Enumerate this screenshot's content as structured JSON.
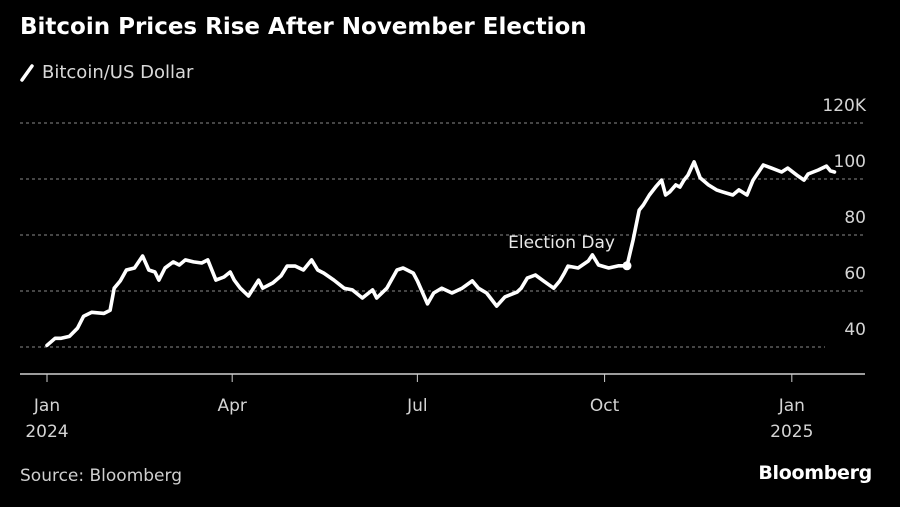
{
  "source_text": "Source: Bloomberg",
  "brand": "Bloomberg",
  "chart_data": {
    "type": "line",
    "title": "Bitcoin Prices Rise After November Election",
    "legend": [
      {
        "name": "Bitcoin/US Dollar",
        "color": "#ffffff"
      }
    ],
    "legend_placement": "top-left",
    "xlabel": "",
    "ylabel": "",
    "ylim": [
      32,
      125
    ],
    "yticks": [
      {
        "value": 120,
        "label": "120K"
      },
      {
        "value": 100,
        "label": "100"
      },
      {
        "value": 80,
        "label": "80"
      },
      {
        "value": 60,
        "label": "60"
      },
      {
        "value": 40,
        "label": "40"
      }
    ],
    "xticks": [
      {
        "day": 0,
        "label": "Jan",
        "sublabel": "2024"
      },
      {
        "day": 91,
        "label": "Apr",
        "sublabel": ""
      },
      {
        "day": 182,
        "label": "Jul",
        "sublabel": ""
      },
      {
        "day": 274,
        "label": "Oct",
        "sublabel": ""
      },
      {
        "day": 366,
        "label": "Jan",
        "sublabel": "2025"
      }
    ],
    "x_unit": "days since 2024-01-01",
    "xlim": [
      -13,
      403
    ],
    "grid": true,
    "annotations": [
      {
        "label": "Election Day",
        "day": 285,
        "value": 69.0
      }
    ],
    "series": [
      {
        "name": "Bitcoin/US Dollar",
        "unit": "thousand USD",
        "x": [
          0,
          4,
          7,
          11,
          15,
          18,
          22,
          28,
          31,
          33,
          36,
          39,
          43,
          47,
          50,
          53,
          55,
          58,
          62,
          65,
          68,
          72,
          76,
          79,
          83,
          87,
          90,
          92,
          95,
          99,
          104,
          106,
          111,
          115,
          118,
          122,
          126,
          130,
          133,
          136,
          141,
          146,
          150,
          155,
          160,
          162,
          167,
          172,
          175,
          180,
          182,
          187,
          190,
          194,
          199,
          204,
          209,
          212,
          216,
          221,
          225,
          231,
          233,
          236,
          240,
          244,
          249,
          252,
          254,
          256,
          261,
          266,
          268,
          271,
          276,
          281,
          285,
          288,
          291,
          293,
          296,
          299,
          302,
          304,
          306,
          309,
          311,
          313,
          315,
          318,
          321,
          325,
          329,
          332,
          337,
          340,
          344,
          347,
          352,
          356,
          361,
          364,
          369,
          372,
          374,
          379,
          383,
          385,
          387
        ],
        "values": [
          40.6,
          43.1,
          43.1,
          43.8,
          46.7,
          51.0,
          52.4,
          52.0,
          53.1,
          61.0,
          63.6,
          67.5,
          68.2,
          72.5,
          67.5,
          66.8,
          63.9,
          68.2,
          70.4,
          69.3,
          71.1,
          70.4,
          70.0,
          71.1,
          63.9,
          65.0,
          66.8,
          63.9,
          61.0,
          58.2,
          63.9,
          61.0,
          62.9,
          65.4,
          68.9,
          68.9,
          67.5,
          71.1,
          67.5,
          66.4,
          63.9,
          61.0,
          60.4,
          57.5,
          60.4,
          57.5,
          61.0,
          67.5,
          68.2,
          66.4,
          63.6,
          55.4,
          59.3,
          61.0,
          59.3,
          61.0,
          63.6,
          61.0,
          59.3,
          54.6,
          57.9,
          59.6,
          61.0,
          64.6,
          65.7,
          63.6,
          61.0,
          63.6,
          66.1,
          68.9,
          68.2,
          70.7,
          72.9,
          69.3,
          68.2,
          69.0,
          69.0,
          78.2,
          88.9,
          90.7,
          94.3,
          97.1,
          99.6,
          94.3,
          95.4,
          97.9,
          97.1,
          99.6,
          101.4,
          106.1,
          100.4,
          97.9,
          96.1,
          95.4,
          94.3,
          96.1,
          94.3,
          99.6,
          105.0,
          103.9,
          102.5,
          103.9,
          101.1,
          99.6,
          101.8,
          103.2,
          104.6,
          102.9,
          102.5
        ]
      }
    ]
  }
}
